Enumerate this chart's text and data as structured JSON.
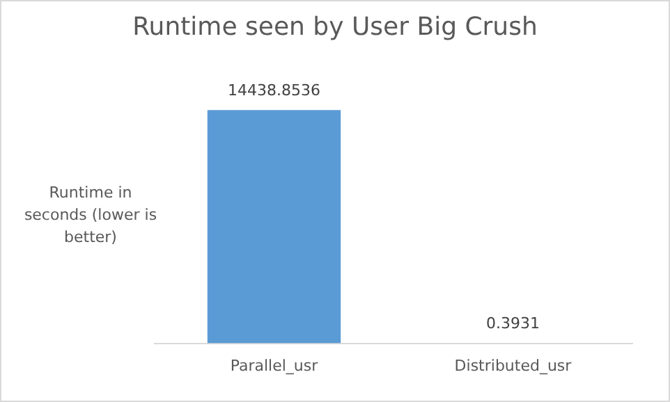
{
  "chart_data": {
    "type": "bar",
    "title": "Runtime seen by User Big Crush",
    "ylabel": "Runtime in seconds (lower is better)",
    "categories": [
      "Parallel_usr",
      "Distributed_usr"
    ],
    "values": [
      14438.8536,
      0.3931
    ],
    "color": "#5b9bd5",
    "data_labels": true,
    "legend": false,
    "grid": false
  }
}
